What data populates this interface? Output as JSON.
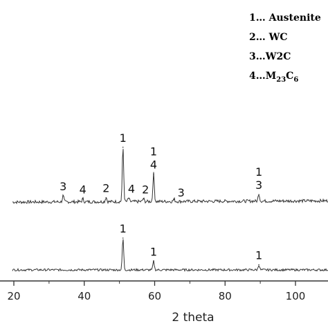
{
  "chart_data": {
    "type": "line",
    "title": "",
    "xlabel": "2 theta",
    "ylabel": "",
    "xlim": [
      20,
      110
    ],
    "x_ticks": [
      "20",
      "40",
      "60",
      "80",
      "100"
    ],
    "grid": false,
    "legend_position": "top-right",
    "legend": [
      {
        "num": "1",
        "sep": "…",
        "name": " Austenite",
        "sub": "",
        "tail": ""
      },
      {
        "num": "2",
        "sep": "…",
        "name": " WC",
        "sub": "",
        "tail": ""
      },
      {
        "num": "3",
        "sep": "…",
        "name": "W2C",
        "sub": "",
        "tail": ""
      },
      {
        "num": "4",
        "sep": "…",
        "name": "M",
        "sub": "23",
        "tail": "C",
        "sub2": "6"
      }
    ],
    "series": [
      {
        "peaks": [
          {
            "x": 34.0,
            "y": 0.1
          },
          {
            "x": 39.6,
            "y": 0.05
          },
          {
            "x": 46.2,
            "y": 0.07
          },
          {
            "x": 51.0,
            "y": 0.88
          },
          {
            "x": 52.6,
            "y": 0.06
          },
          {
            "x": 56.8,
            "y": 0.05
          },
          {
            "x": 59.7,
            "y": 0.45
          },
          {
            "x": 65.5,
            "y": 0.04
          },
          {
            "x": 89.6,
            "y": 0.12
          }
        ],
        "labels": [
          {
            "x": 34.0,
            "lines": [
              "3"
            ]
          },
          {
            "x": 39.6,
            "lines": [
              "4"
            ]
          },
          {
            "x": 46.2,
            "lines": [
              "2"
            ]
          },
          {
            "x": 51.0,
            "lines": [
              "1"
            ]
          },
          {
            "x": 53.4,
            "lines": [
              "4"
            ]
          },
          {
            "x": 57.4,
            "lines": [
              "2"
            ]
          },
          {
            "x": 59.7,
            "lines": [
              "1",
              "4"
            ]
          },
          {
            "x": 67.5,
            "lines": [
              "3"
            ]
          },
          {
            "x": 89.6,
            "lines": [
              "1",
              "3"
            ]
          }
        ]
      },
      {
        "peaks": [
          {
            "x": 51.0,
            "y": 0.92
          },
          {
            "x": 59.7,
            "y": 0.25
          },
          {
            "x": 89.6,
            "y": 0.15
          }
        ],
        "labels": [
          {
            "x": 51.0,
            "lines": [
              "1"
            ]
          },
          {
            "x": 59.7,
            "lines": [
              "1"
            ]
          },
          {
            "x": 89.6,
            "lines": [
              "1"
            ]
          }
        ]
      }
    ]
  }
}
